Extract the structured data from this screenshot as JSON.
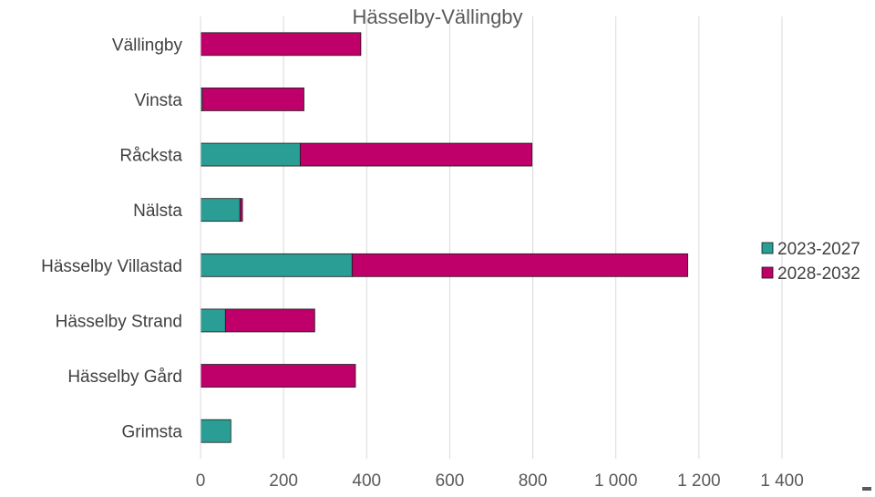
{
  "chart_data": {
    "type": "bar",
    "orientation": "horizontal",
    "stacked": true,
    "title": "Hässelby-Vällingby",
    "categories": [
      "Vällingby",
      "Vinsta",
      "Råcksta",
      "Nälsta",
      "Hässelby Villastad",
      "Hässelby Strand",
      "Hässelby Gård",
      "Grimsta"
    ],
    "series": [
      {
        "name": "2023-2027",
        "color": "#2a9d94",
        "values": [
          0,
          4,
          240,
          95,
          365,
          60,
          0,
          73
        ]
      },
      {
        "name": "2028-2032",
        "color": "#c0006a",
        "values": [
          386,
          245,
          558,
          6,
          808,
          215,
          373,
          0
        ]
      }
    ],
    "xlim": [
      0,
      1400
    ],
    "xticks": [
      0,
      200,
      400,
      600,
      800,
      1000,
      1200,
      1400
    ],
    "xtick_labels": [
      "0",
      "200",
      "400",
      "600",
      "800",
      "1 000",
      "1 200",
      "1 400"
    ],
    "grid": "vertical",
    "legend": "right"
  }
}
